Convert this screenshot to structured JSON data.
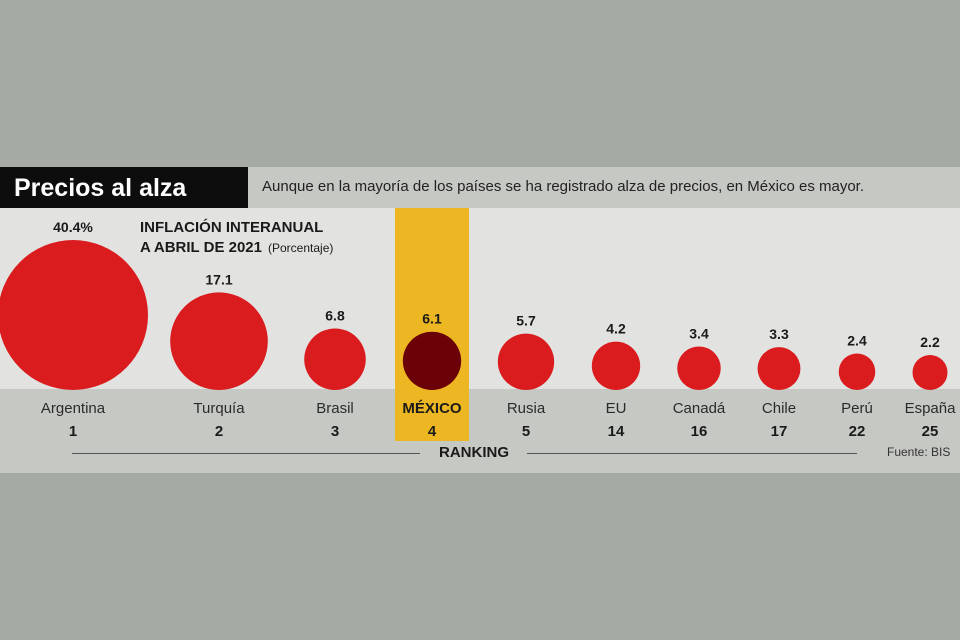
{
  "header": {
    "title": "Precios al alza",
    "subtitle": "Aunque en la mayoría de los países se ha registrado alza de precios, en México es mayor."
  },
  "metric": {
    "line1": "INFLACIÓN INTERANUAL",
    "line2": "A ABRIL DE 2021",
    "unit": "(Porcentaje)"
  },
  "ranking_label": "RANKING",
  "source": "Fuente: BIS",
  "colors": {
    "bubble": "#da1c1f",
    "highlight_bubble": "#6b0207",
    "highlight_column": "#ecb723"
  },
  "chart_data": {
    "type": "bubble",
    "categories": [
      "Argentina",
      "Turquía",
      "Brasil",
      "MÉXICO",
      "Rusia",
      "EU",
      "Canadá",
      "Chile",
      "Perú",
      "España"
    ],
    "value_labels": [
      "40.4%",
      "17.1",
      "6.8",
      "6.1",
      "5.7",
      "4.2",
      "3.4",
      "3.3",
      "2.4",
      "2.2"
    ],
    "values": [
      40.4,
      17.1,
      6.8,
      6.1,
      5.7,
      4.2,
      3.4,
      3.3,
      2.4,
      2.2
    ],
    "ranking": [
      "1",
      "2",
      "3",
      "4",
      "5",
      "14",
      "16",
      "17",
      "22",
      "25"
    ],
    "highlight": "MÉXICO",
    "unit": "Porcentaje"
  }
}
